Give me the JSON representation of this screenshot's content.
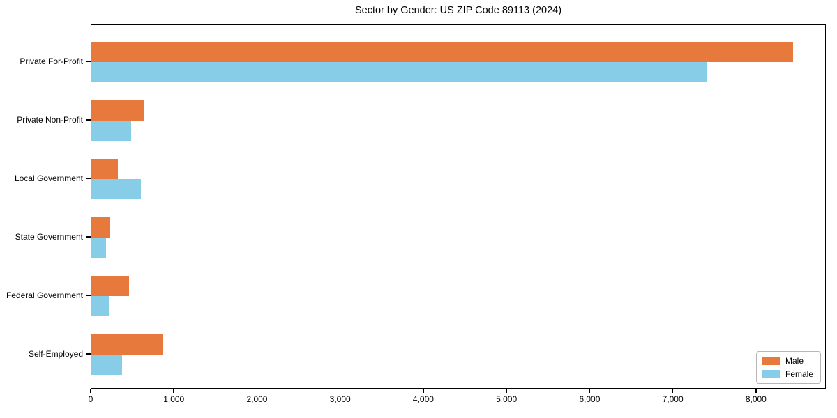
{
  "title": "Sector by Gender: US ZIP Code 89113 (2024)",
  "chart_data": {
    "type": "bar",
    "orientation": "horizontal",
    "title": "Sector by Gender: US ZIP Code 89113 (2024)",
    "xlabel": "",
    "ylabel": "",
    "categories": [
      "Private For-Profit",
      "Private Non-Profit",
      "Local Government",
      "State Government",
      "Federal Government",
      "Self-Employed"
    ],
    "series": [
      {
        "name": "Male",
        "color": "#E8793C",
        "values": [
          8440,
          630,
          315,
          225,
          455,
          860
        ]
      },
      {
        "name": "Female",
        "color": "#87CDE8",
        "values": [
          7400,
          475,
          595,
          175,
          210,
          365
        ]
      }
    ],
    "xlim": [
      0,
      8840
    ],
    "xticks": [
      0,
      1000,
      2000,
      3000,
      4000,
      5000,
      6000,
      7000,
      8000
    ],
    "xtick_labels": [
      "0",
      "1,000",
      "2,000",
      "3,000",
      "4,000",
      "5,000",
      "6,000",
      "7,000",
      "8,000"
    ],
    "grid": false,
    "legend_position": "lower right"
  },
  "legend": {
    "items": [
      {
        "label": "Male",
        "color": "#E8793C"
      },
      {
        "label": "Female",
        "color": "#87CDE8"
      }
    ]
  }
}
